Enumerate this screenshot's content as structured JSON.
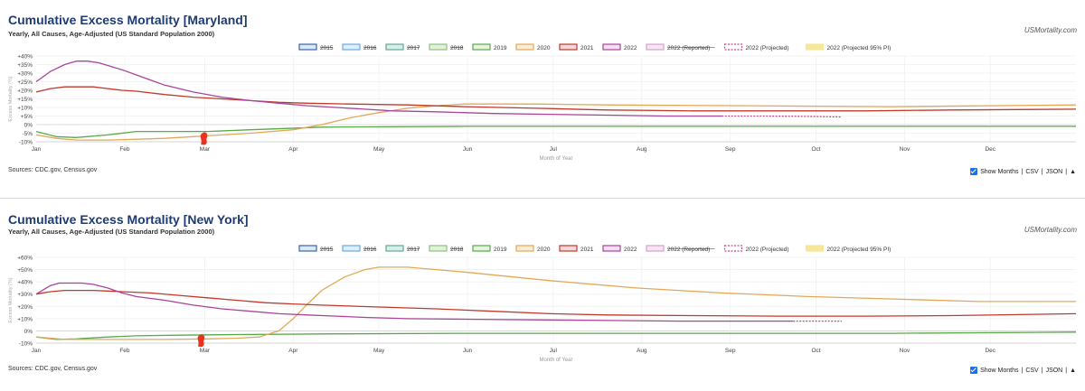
{
  "brand": "USMortality.com",
  "sources": "Sources: CDC.gov, Census.gov",
  "controls": {
    "show_months_label": "Show Months",
    "csv": "CSV",
    "json": "JSON",
    "divider": "|",
    "up_arrow": "▲"
  },
  "legend": [
    {
      "label": "2015",
      "fill": "#dbe8f5",
      "stroke": "#3a64a8",
      "struck": true,
      "dashed": false
    },
    {
      "label": "2016",
      "fill": "#dcefff",
      "stroke": "#6fa8dc",
      "struck": true,
      "dashed": false
    },
    {
      "label": "2017",
      "fill": "#d9eee9",
      "stroke": "#61a896",
      "struck": true,
      "dashed": false
    },
    {
      "label": "2018",
      "fill": "#e2f1dc",
      "stroke": "#8ec07a",
      "struck": true,
      "dashed": false
    },
    {
      "label": "2019",
      "fill": "#e6f4df",
      "stroke": "#5aa84a",
      "struck": false,
      "dashed": false
    },
    {
      "label": "2020",
      "fill": "#fbecd6",
      "stroke": "#e2a857",
      "struck": false,
      "dashed": false
    },
    {
      "label": "2021",
      "fill": "#f6d9dc",
      "stroke": "#c0392b",
      "struck": false,
      "dashed": false
    },
    {
      "label": "2022",
      "fill": "#f4dff0",
      "stroke": "#a8449a",
      "struck": false,
      "dashed": false
    },
    {
      "label": "2022 (Reported)",
      "fill": "#f6e6f3",
      "stroke": "#d6a0cc",
      "struck": true,
      "dashed": false
    },
    {
      "label": "2022 (Projected)",
      "fill": "#ffffff",
      "stroke": "#c44a86",
      "struck": false,
      "dashed": true
    },
    {
      "label": "2022 (Projected 95% PI)",
      "fill": "#f6e79a",
      "stroke": "#f6e79a",
      "struck": false,
      "dashed": false
    }
  ],
  "chart_data": [
    {
      "type": "line",
      "title": "Cumulative Excess Mortality [Maryland]",
      "subtitle": "Yearly, All Causes, Age-Adjusted (US Standard Population 2000)",
      "xlabel": "Month of Year",
      "ylabel": "Excess Mortality (%)",
      "xlim": [
        0,
        364
      ],
      "ylim": [
        -10,
        40
      ],
      "yticks": [
        -10,
        -5,
        0,
        5,
        10,
        15,
        20,
        25,
        30,
        35,
        40
      ],
      "ytick_labels": [
        "-10%",
        "-5%",
        "0%",
        "+5%",
        "+10%",
        "+15%",
        "+20%",
        "+25%",
        "+30%",
        "+35%",
        "+40%"
      ],
      "months": [
        {
          "label": "Jan",
          "day": 0
        },
        {
          "label": "Feb",
          "day": 31
        },
        {
          "label": "Mar",
          "day": 59
        },
        {
          "label": "Apr",
          "day": 90
        },
        {
          "label": "May",
          "day": 120
        },
        {
          "label": "Jun",
          "day": 151
        },
        {
          "label": "Jul",
          "day": 181
        },
        {
          "label": "Aug",
          "day": 212
        },
        {
          "label": "Sep",
          "day": 243
        },
        {
          "label": "Oct",
          "day": 273
        },
        {
          "label": "Nov",
          "day": 304
        },
        {
          "label": "Dec",
          "day": 334
        }
      ],
      "grid": true,
      "series": [
        {
          "name": "2019",
          "color": "#5aa84a",
          "x": [
            0,
            7,
            14,
            25,
            35,
            45,
            60,
            75,
            100,
            150,
            200,
            250,
            300,
            364
          ],
          "y": [
            -4,
            -7,
            -7.5,
            -6,
            -4,
            -4,
            -4,
            -3,
            -1.5,
            -1,
            -1,
            -1,
            -1,
            -1
          ]
        },
        {
          "name": "2020",
          "color": "#e2a857",
          "x": [
            0,
            7,
            14,
            25,
            35,
            45,
            55,
            65,
            75,
            90,
            100,
            110,
            120,
            130,
            140,
            150,
            175,
            200,
            250,
            300,
            364
          ],
          "y": [
            -6,
            -8,
            -9,
            -9,
            -8.5,
            -8,
            -7,
            -6,
            -5,
            -3,
            0,
            4,
            7,
            9.5,
            11,
            12,
            12,
            11.5,
            11,
            10.5,
            11.5
          ]
        },
        {
          "name": "2021",
          "color": "#c0392b",
          "x": [
            0,
            5,
            10,
            15,
            20,
            25,
            30,
            35,
            45,
            55,
            65,
            75,
            85,
            95,
            110,
            130,
            150,
            175,
            200,
            230,
            260,
            290,
            320,
            364
          ],
          "y": [
            19,
            21,
            22,
            22,
            22,
            21,
            20,
            19.5,
            17.5,
            16,
            15,
            14,
            13,
            12.5,
            12,
            11.5,
            10.5,
            9.5,
            8.5,
            8,
            8,
            8,
            8.5,
            9
          ]
        },
        {
          "name": "2022",
          "color": "#a8449a",
          "x": [
            0,
            5,
            10,
            14,
            18,
            22,
            26,
            30,
            35,
            40,
            45,
            55,
            65,
            75,
            85,
            95,
            105,
            115,
            125,
            140,
            160,
            180,
            200,
            220,
            240
          ],
          "y": [
            25,
            31,
            35,
            37,
            37,
            36,
            34,
            32,
            29,
            26,
            23,
            19,
            16,
            14,
            12.5,
            11,
            10,
            9,
            8,
            7.5,
            6.5,
            6,
            5.5,
            5,
            5
          ]
        },
        {
          "name": "2022 (Projected)",
          "color": "#c44a86",
          "dashed": true,
          "x": [
            240,
            255,
            270,
            282
          ],
          "y": [
            5,
            5,
            4.8,
            4.5
          ]
        }
      ],
      "annotation_marker": {
        "shape": "red-scribble",
        "x": 59,
        "y": -7.5
      }
    },
    {
      "type": "line",
      "title": "Cumulative Excess Mortality [New York]",
      "subtitle": "Yearly, All Causes, Age-Adjusted (US Standard Population 2000)",
      "xlabel": "Month of Year",
      "ylabel": "Excess Mortality (%)",
      "xlim": [
        0,
        364
      ],
      "ylim": [
        -10,
        60
      ],
      "yticks": [
        -10,
        0,
        10,
        20,
        30,
        40,
        50,
        60
      ],
      "ytick_labels": [
        "-10%",
        "0%",
        "+10%",
        "+20%",
        "+30%",
        "+40%",
        "+50%",
        "+60%"
      ],
      "months": [
        {
          "label": "Jan",
          "day": 0
        },
        {
          "label": "Feb",
          "day": 31
        },
        {
          "label": "Mar",
          "day": 59
        },
        {
          "label": "Apr",
          "day": 90
        },
        {
          "label": "May",
          "day": 120
        },
        {
          "label": "Jun",
          "day": 151
        },
        {
          "label": "Jul",
          "day": 181
        },
        {
          "label": "Aug",
          "day": 212
        },
        {
          "label": "Sep",
          "day": 243
        },
        {
          "label": "Oct",
          "day": 273
        },
        {
          "label": "Nov",
          "day": 304
        },
        {
          "label": "Dec",
          "day": 334
        }
      ],
      "grid": true,
      "series": [
        {
          "name": "2019",
          "color": "#5aa84a",
          "x": [
            0,
            7,
            14,
            25,
            35,
            50,
            70,
            100,
            150,
            200,
            250,
            300,
            364
          ],
          "y": [
            -5,
            -7,
            -6.5,
            -5,
            -4,
            -3.5,
            -3,
            -2.5,
            -2,
            -2,
            -2,
            -2,
            -1
          ]
        },
        {
          "name": "2020",
          "color": "#e2a857",
          "x": [
            0,
            10,
            25,
            45,
            60,
            70,
            78,
            85,
            90,
            95,
            100,
            108,
            115,
            120,
            130,
            150,
            180,
            210,
            240,
            270,
            300,
            330,
            364
          ],
          "y": [
            -5,
            -7,
            -7,
            -7,
            -6.5,
            -6,
            -5,
            0,
            10,
            22,
            33,
            44,
            50,
            52,
            52,
            48,
            41,
            35,
            31,
            28,
            26,
            24,
            24
          ]
        },
        {
          "name": "2021",
          "color": "#c0392b",
          "x": [
            0,
            5,
            10,
            15,
            20,
            25,
            30,
            40,
            50,
            60,
            70,
            80,
            90,
            100,
            120,
            140,
            160,
            180,
            200,
            230,
            260,
            290,
            320,
            364
          ],
          "y": [
            30,
            32,
            33,
            33,
            33,
            32.5,
            32,
            31,
            29,
            27,
            25,
            23,
            22,
            21,
            19.5,
            18,
            16,
            14,
            13,
            12.5,
            12,
            12,
            12.5,
            14
          ]
        },
        {
          "name": "2022",
          "color": "#a8449a",
          "x": [
            0,
            5,
            8,
            12,
            16,
            20,
            25,
            30,
            35,
            45,
            55,
            65,
            75,
            85,
            95,
            105,
            115,
            130,
            150,
            175,
            200,
            225,
            250,
            265
          ],
          "y": [
            30,
            37,
            39,
            39,
            39,
            38,
            35,
            31,
            28,
            25,
            21,
            18,
            16,
            14,
            13,
            12,
            11,
            10,
            9.5,
            9,
            8.5,
            8,
            8,
            8
          ]
        },
        {
          "name": "2022 (Projected)",
          "color": "#c44a86",
          "dashed": true,
          "x": [
            265,
            275,
            282
          ],
          "y": [
            8,
            8,
            8
          ]
        }
      ],
      "annotation_marker": {
        "shape": "red-scribble",
        "x": 58,
        "y": -7
      }
    }
  ]
}
